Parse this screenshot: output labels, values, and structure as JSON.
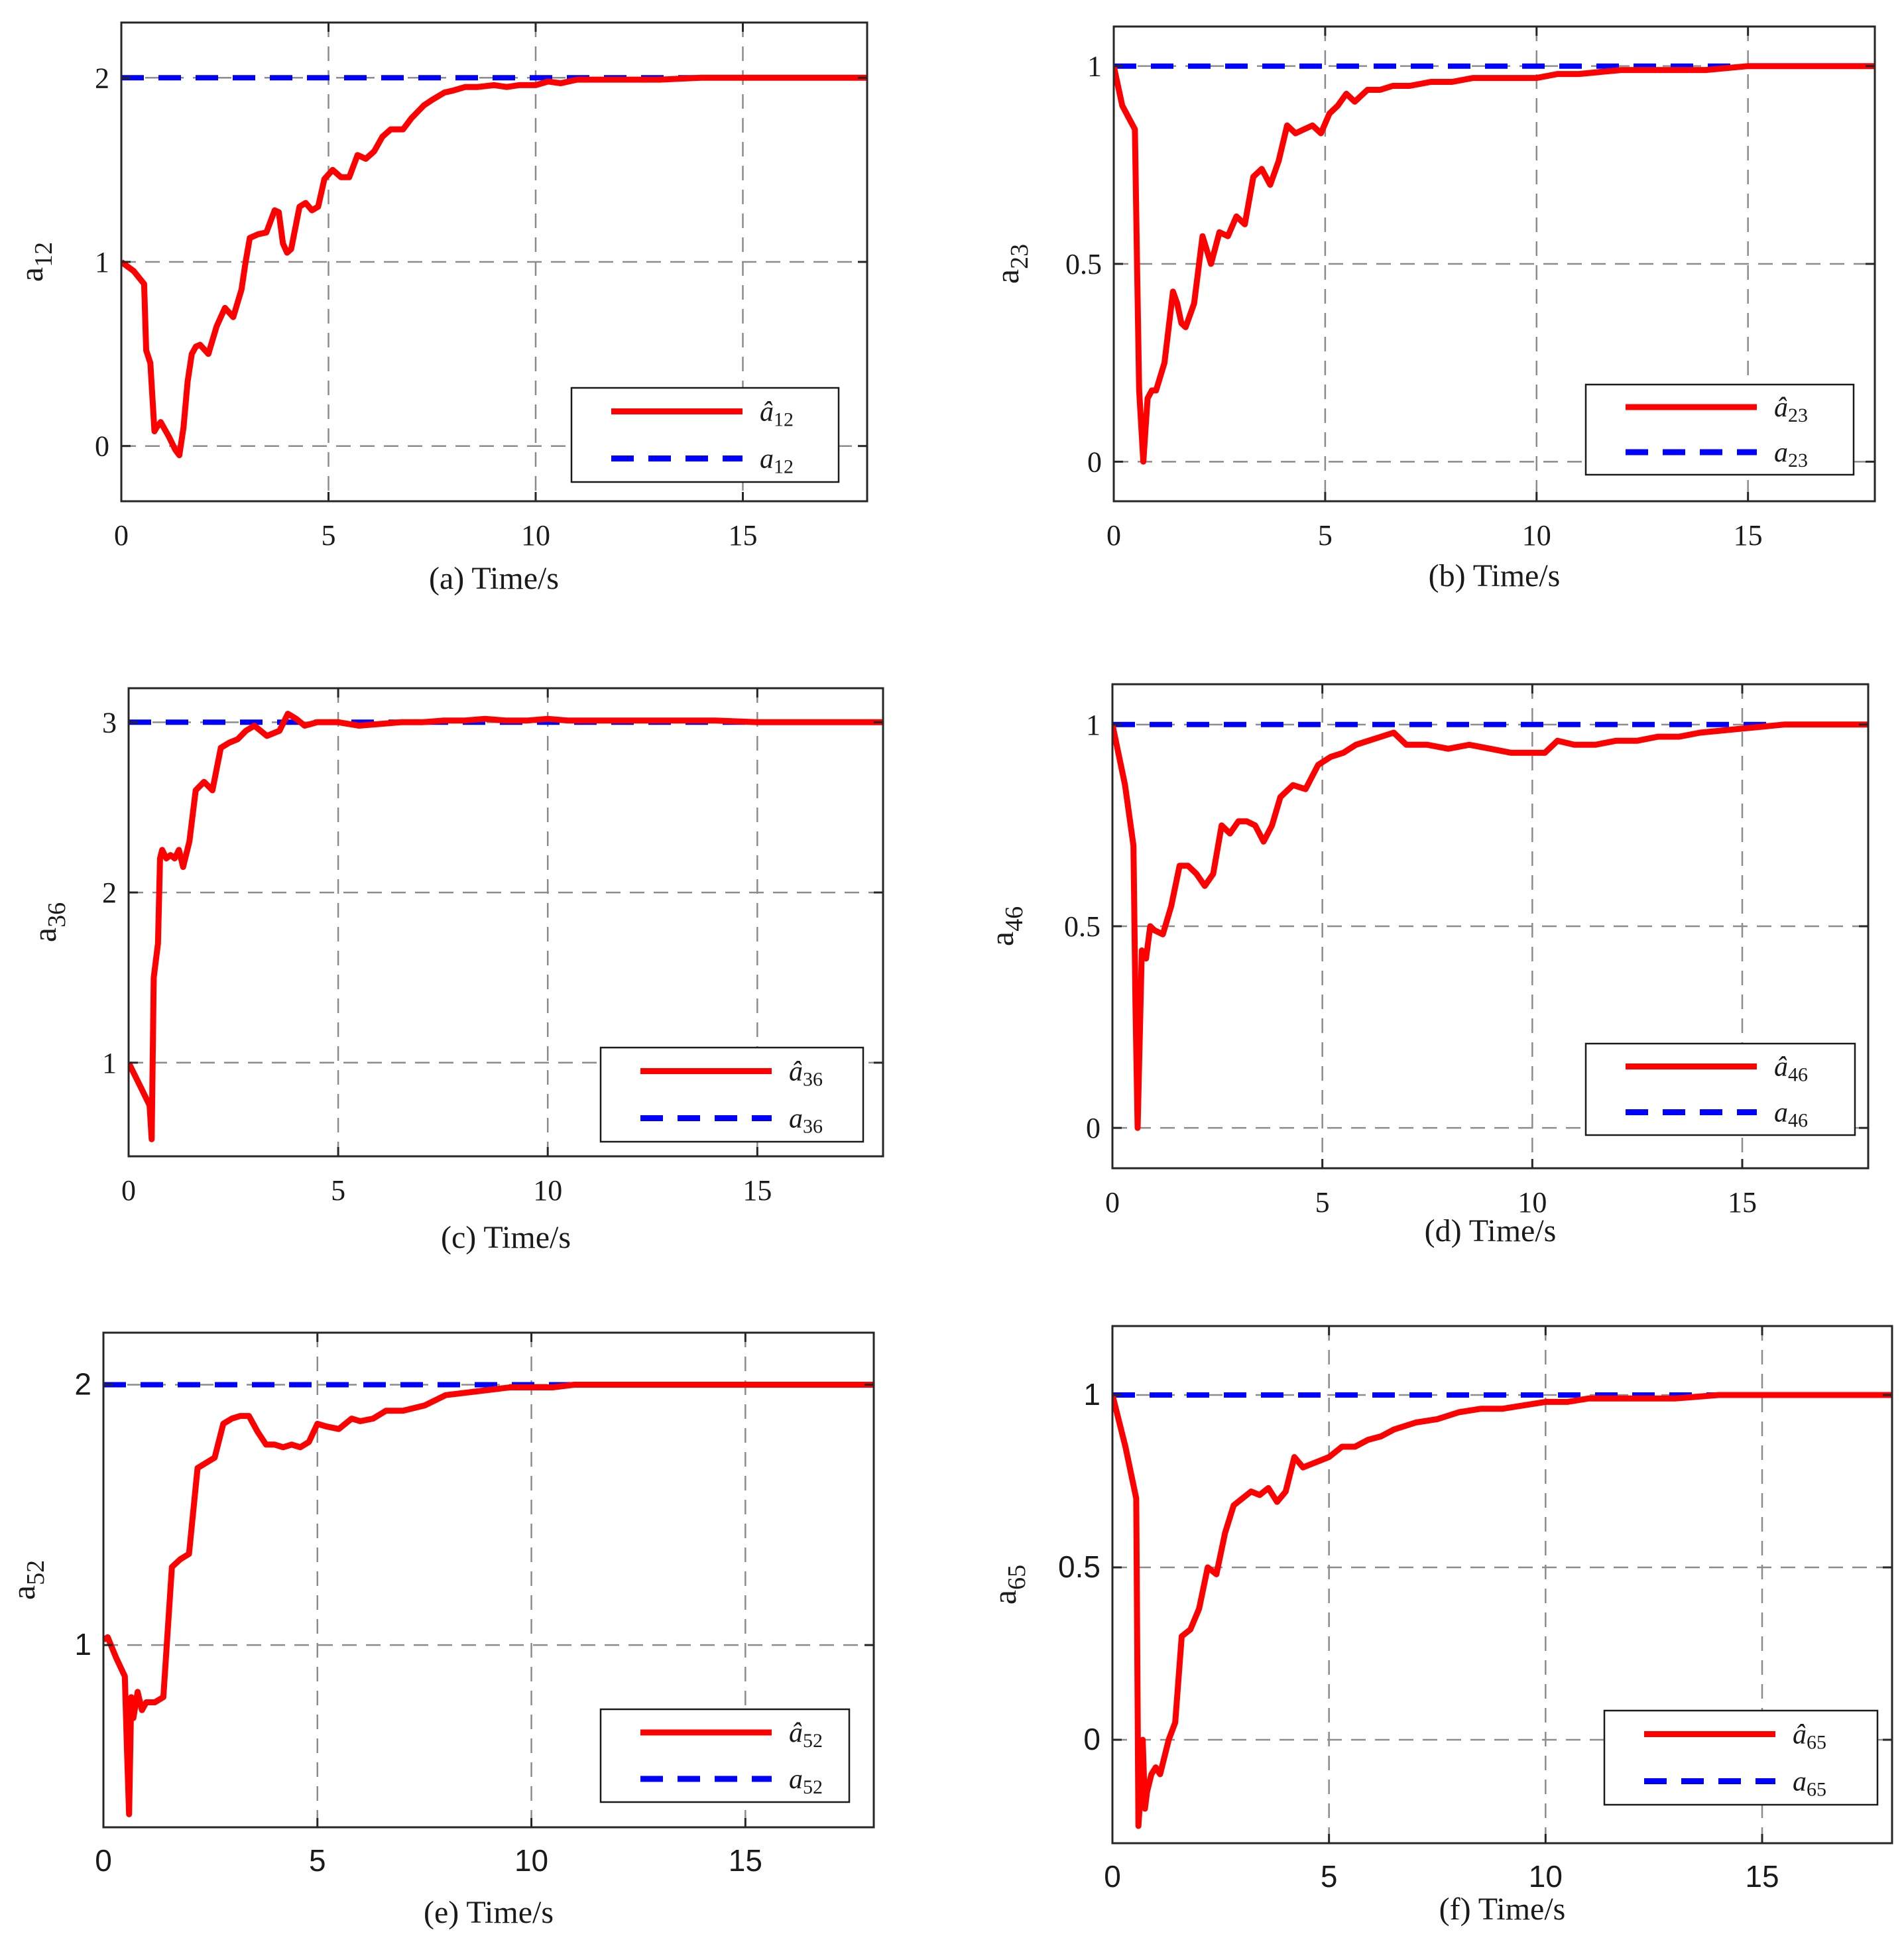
{
  "colors": {
    "estimate": "#ff0000",
    "true": "#0000ff",
    "grid": "#8c8c8c",
    "axis": "#262626"
  },
  "chart_data": [
    {
      "type": "line",
      "panel": "a",
      "caption": "(a) Time/s",
      "ylabel_base": "a",
      "ylabel_sub": "12",
      "xlim": [
        0,
        18
      ],
      "ylim": [
        -0.3,
        2.3
      ],
      "xticks": [
        0,
        5,
        10,
        15
      ],
      "yticks": [
        0,
        1,
        2
      ],
      "xtick_labels": [
        "0",
        "5",
        "10",
        "15"
      ],
      "ytick_labels": [
        "0",
        "1",
        "2"
      ],
      "legend": {
        "position": "bottom-right",
        "entries": [
          {
            "base": "â",
            "sub": "12"
          },
          {
            "base": "a",
            "sub": "12"
          }
        ]
      },
      "series": [
        {
          "name": "â12",
          "color": "#ff0000",
          "style": "solid",
          "x": [
            0,
            0.3,
            0.55,
            0.6,
            0.7,
            0.8,
            0.85,
            0.95,
            1.05,
            1.15,
            1.3,
            1.4,
            1.5,
            1.6,
            1.7,
            1.8,
            1.9,
            2.1,
            2.3,
            2.5,
            2.7,
            2.9,
            3.0,
            3.1,
            3.3,
            3.5,
            3.7,
            3.8,
            3.9,
            4.0,
            4.1,
            4.3,
            4.45,
            4.6,
            4.75,
            4.9,
            5.1,
            5.3,
            5.5,
            5.7,
            5.9,
            6.1,
            6.3,
            6.5,
            6.8,
            7.0,
            7.3,
            7.5,
            7.8,
            8.0,
            8.3,
            8.6,
            9.0,
            9.3,
            9.6,
            10.0,
            10.3,
            10.6,
            11.0,
            11.5,
            12.0,
            13.0,
            14.0,
            15.0,
            16.0,
            17.0,
            18.0
          ],
          "y": [
            1.0,
            0.95,
            0.88,
            0.52,
            0.45,
            0.08,
            0.1,
            0.13,
            0.09,
            0.05,
            -0.02,
            -0.05,
            0.1,
            0.35,
            0.5,
            0.54,
            0.55,
            0.5,
            0.65,
            0.75,
            0.7,
            0.85,
            1.0,
            1.13,
            1.15,
            1.16,
            1.28,
            1.27,
            1.1,
            1.05,
            1.07,
            1.3,
            1.32,
            1.28,
            1.3,
            1.45,
            1.5,
            1.46,
            1.46,
            1.58,
            1.56,
            1.6,
            1.68,
            1.72,
            1.72,
            1.78,
            1.85,
            1.88,
            1.92,
            1.93,
            1.95,
            1.95,
            1.96,
            1.95,
            1.96,
            1.96,
            1.98,
            1.97,
            1.99,
            1.99,
            1.99,
            1.99,
            2.0,
            2.0,
            2.0,
            2.0,
            2.0
          ]
        },
        {
          "name": "a12",
          "color": "#0000ff",
          "style": "dashed",
          "x": [
            0,
            18
          ],
          "y": [
            2,
            2
          ]
        }
      ]
    },
    {
      "type": "line",
      "panel": "b",
      "caption": "(b) Time/s",
      "ylabel_base": "a",
      "ylabel_sub": "23",
      "xlim": [
        0,
        18
      ],
      "ylim": [
        -0.1,
        1.1
      ],
      "xticks": [
        0,
        5,
        10,
        15
      ],
      "yticks": [
        0,
        0.5,
        1
      ],
      "xtick_labels": [
        "0",
        "5",
        "10",
        "15"
      ],
      "ytick_labels": [
        "0",
        "0.5",
        "1"
      ],
      "legend": {
        "position": "bottom-right",
        "entries": [
          {
            "base": "â",
            "sub": "23"
          },
          {
            "base": "a",
            "sub": "23"
          }
        ]
      },
      "series": [
        {
          "name": "â23",
          "color": "#ff0000",
          "style": "solid",
          "x": [
            0,
            0.2,
            0.5,
            0.55,
            0.6,
            0.7,
            0.8,
            0.9,
            1.0,
            1.2,
            1.4,
            1.5,
            1.6,
            1.7,
            1.9,
            2.1,
            2.3,
            2.5,
            2.7,
            2.9,
            3.1,
            3.3,
            3.5,
            3.7,
            3.9,
            4.1,
            4.3,
            4.5,
            4.7,
            4.9,
            5.1,
            5.3,
            5.5,
            5.7,
            6.0,
            6.3,
            6.6,
            7.0,
            7.5,
            8.0,
            8.5,
            9.0,
            9.5,
            10.0,
            10.5,
            11.0,
            12.0,
            13.0,
            14.0,
            15.0,
            16.0,
            17.0,
            18.0
          ],
          "y": [
            1.0,
            0.9,
            0.84,
            0.5,
            0.18,
            0.0,
            0.16,
            0.18,
            0.18,
            0.25,
            0.43,
            0.4,
            0.35,
            0.34,
            0.4,
            0.57,
            0.5,
            0.58,
            0.57,
            0.62,
            0.6,
            0.72,
            0.74,
            0.7,
            0.76,
            0.85,
            0.83,
            0.84,
            0.85,
            0.83,
            0.88,
            0.9,
            0.93,
            0.91,
            0.94,
            0.94,
            0.95,
            0.95,
            0.96,
            0.96,
            0.97,
            0.97,
            0.97,
            0.97,
            0.98,
            0.98,
            0.99,
            0.99,
            0.99,
            1.0,
            1.0,
            1.0,
            1.0
          ]
        },
        {
          "name": "a23",
          "color": "#0000ff",
          "style": "dashed",
          "x": [
            0,
            18
          ],
          "y": [
            1,
            1
          ]
        }
      ]
    },
    {
      "type": "line",
      "panel": "c",
      "caption": "(c) Time/s",
      "ylabel_base": "a",
      "ylabel_sub": "36",
      "xlim": [
        0,
        18
      ],
      "ylim": [
        0.45,
        3.2
      ],
      "xticks": [
        0,
        5,
        10,
        15
      ],
      "yticks": [
        1,
        2,
        3
      ],
      "xtick_labels": [
        "0",
        "5",
        "10",
        "15"
      ],
      "ytick_labels": [
        "1",
        "2",
        "3"
      ],
      "legend": {
        "position": "bottom-right",
        "entries": [
          {
            "base": "â",
            "sub": "36"
          },
          {
            "base": "a",
            "sub": "36"
          }
        ]
      },
      "series": [
        {
          "name": "â36",
          "color": "#ff0000",
          "style": "solid",
          "x": [
            0,
            0.3,
            0.5,
            0.55,
            0.6,
            0.7,
            0.75,
            0.8,
            0.9,
            1.0,
            1.1,
            1.2,
            1.3,
            1.45,
            1.6,
            1.8,
            2.0,
            2.2,
            2.4,
            2.6,
            2.8,
            3.0,
            3.3,
            3.6,
            3.8,
            4.0,
            4.2,
            4.5,
            5.0,
            5.5,
            6.0,
            6.5,
            7.0,
            7.5,
            8.0,
            8.5,
            9.0,
            9.5,
            10.0,
            10.5,
            11.0,
            12.0,
            13.0,
            14.0,
            15.0,
            16.0,
            17.0,
            18.0
          ],
          "y": [
            1.0,
            0.85,
            0.75,
            0.55,
            1.5,
            1.7,
            2.2,
            2.25,
            2.2,
            2.22,
            2.2,
            2.25,
            2.15,
            2.3,
            2.6,
            2.65,
            2.6,
            2.85,
            2.88,
            2.9,
            2.95,
            2.98,
            2.92,
            2.95,
            3.05,
            3.02,
            2.98,
            3.0,
            3.0,
            2.98,
            2.99,
            3.0,
            3.0,
            3.01,
            3.01,
            3.02,
            3.01,
            3.01,
            3.02,
            3.01,
            3.01,
            3.01,
            3.01,
            3.01,
            3.0,
            3.0,
            3.0,
            3.0
          ]
        },
        {
          "name": "a36",
          "color": "#0000ff",
          "style": "dashed",
          "x": [
            0,
            18
          ],
          "y": [
            3,
            3
          ]
        }
      ]
    },
    {
      "type": "line",
      "panel": "d",
      "caption": "(d) Time/s",
      "ylabel_base": "a",
      "ylabel_sub": "46",
      "xlim": [
        0,
        18
      ],
      "ylim": [
        -0.1,
        1.1
      ],
      "xticks": [
        0,
        5,
        10,
        15
      ],
      "yticks": [
        0,
        0.5,
        1
      ],
      "xtick_labels": [
        "0",
        "5",
        "10",
        "15"
      ],
      "ytick_labels": [
        "0",
        "0.5",
        "1"
      ],
      "legend": {
        "position": "bottom-right",
        "entries": [
          {
            "base": "â",
            "sub": "46"
          },
          {
            "base": "a",
            "sub": "46"
          }
        ]
      },
      "series": [
        {
          "name": "â46",
          "color": "#ff0000",
          "style": "solid",
          "x": [
            0,
            0.3,
            0.5,
            0.55,
            0.6,
            0.7,
            0.8,
            0.9,
            1.0,
            1.2,
            1.4,
            1.6,
            1.8,
            2.0,
            2.2,
            2.4,
            2.6,
            2.8,
            3.0,
            3.2,
            3.4,
            3.6,
            3.8,
            4.0,
            4.3,
            4.6,
            4.9,
            5.2,
            5.5,
            5.8,
            6.1,
            6.4,
            6.7,
            7.0,
            7.5,
            8.0,
            8.5,
            9.0,
            9.5,
            10.0,
            10.3,
            10.6,
            11.0,
            11.5,
            12.0,
            12.5,
            13.0,
            13.5,
            14.0,
            15.0,
            16.0,
            17.0,
            18.0
          ],
          "y": [
            1.0,
            0.85,
            0.7,
            0.3,
            0.0,
            0.44,
            0.42,
            0.5,
            0.49,
            0.48,
            0.55,
            0.65,
            0.65,
            0.63,
            0.6,
            0.63,
            0.75,
            0.73,
            0.76,
            0.76,
            0.75,
            0.71,
            0.75,
            0.82,
            0.85,
            0.84,
            0.9,
            0.92,
            0.93,
            0.95,
            0.96,
            0.97,
            0.98,
            0.95,
            0.95,
            0.94,
            0.95,
            0.94,
            0.93,
            0.93,
            0.93,
            0.96,
            0.95,
            0.95,
            0.96,
            0.96,
            0.97,
            0.97,
            0.98,
            0.99,
            1.0,
            1.0,
            1.0
          ]
        },
        {
          "name": "a46",
          "color": "#0000ff",
          "style": "dashed",
          "x": [
            0,
            18
          ],
          "y": [
            1,
            1
          ]
        }
      ]
    },
    {
      "type": "line",
      "panel": "e",
      "caption": "(e) Time/s",
      "ylabel_base": "a",
      "ylabel_sub": "52",
      "sans_ticks": true,
      "xlim": [
        0,
        18
      ],
      "ylim": [
        0.3,
        2.2
      ],
      "xticks": [
        0,
        5,
        10,
        15
      ],
      "yticks": [
        1,
        2
      ],
      "xtick_labels": [
        "0",
        "5",
        "10",
        "15"
      ],
      "ytick_labels": [
        "1",
        "2"
      ],
      "legend": {
        "position": "bottom-right",
        "entries": [
          {
            "base": "â",
            "sub": "52"
          },
          {
            "base": "a",
            "sub": "52"
          }
        ]
      },
      "series": [
        {
          "name": "â52",
          "color": "#ff0000",
          "style": "solid",
          "x": [
            0,
            0.1,
            0.3,
            0.5,
            0.55,
            0.6,
            0.65,
            0.7,
            0.8,
            0.9,
            1.0,
            1.2,
            1.4,
            1.6,
            1.8,
            2.0,
            2.2,
            2.4,
            2.6,
            2.8,
            3.0,
            3.2,
            3.4,
            3.6,
            3.8,
            4.0,
            4.2,
            4.4,
            4.6,
            4.8,
            5.0,
            5.2,
            5.5,
            5.8,
            6.0,
            6.3,
            6.6,
            7.0,
            7.5,
            8.0,
            8.5,
            9.0,
            9.5,
            10.0,
            10.5,
            11.0,
            12.0,
            13.0,
            14.0,
            15.0,
            16.0,
            17.0,
            18.0
          ],
          "y": [
            1.02,
            1.03,
            0.95,
            0.88,
            0.6,
            0.35,
            0.8,
            0.72,
            0.82,
            0.75,
            0.78,
            0.78,
            0.8,
            1.3,
            1.33,
            1.35,
            1.68,
            1.7,
            1.72,
            1.85,
            1.87,
            1.88,
            1.88,
            1.82,
            1.77,
            1.77,
            1.76,
            1.77,
            1.76,
            1.78,
            1.85,
            1.84,
            1.83,
            1.87,
            1.86,
            1.87,
            1.9,
            1.9,
            1.92,
            1.96,
            1.97,
            1.98,
            1.99,
            1.99,
            1.99,
            2.0,
            2.0,
            2.0,
            2.0,
            2.0,
            2.0,
            2.0,
            2.0
          ]
        },
        {
          "name": "a52",
          "color": "#0000ff",
          "style": "dashed",
          "x": [
            0,
            18
          ],
          "y": [
            2,
            2
          ]
        }
      ]
    },
    {
      "type": "line",
      "panel": "f",
      "caption": "(f) Time/s",
      "ylabel_base": "a",
      "ylabel_sub": "65",
      "sans_ticks": true,
      "xlim": [
        0,
        18
      ],
      "ylim": [
        -0.3,
        1.2
      ],
      "xticks": [
        0,
        5,
        10,
        15
      ],
      "yticks": [
        0,
        0.5,
        1
      ],
      "xtick_labels": [
        "0",
        "5",
        "10",
        "15"
      ],
      "ytick_labels": [
        "0",
        "0.5",
        "1"
      ],
      "legend": {
        "position": "bottom-right",
        "entries": [
          {
            "base": "â",
            "sub": "65"
          },
          {
            "base": "a",
            "sub": "65"
          }
        ]
      },
      "series": [
        {
          "name": "â65",
          "color": "#ff0000",
          "style": "solid",
          "x": [
            0,
            0.3,
            0.55,
            0.6,
            0.65,
            0.7,
            0.75,
            0.8,
            0.9,
            1.0,
            1.1,
            1.2,
            1.3,
            1.45,
            1.6,
            1.8,
            2.0,
            2.2,
            2.4,
            2.6,
            2.8,
            3.0,
            3.2,
            3.4,
            3.6,
            3.8,
            4.0,
            4.2,
            4.4,
            4.6,
            4.8,
            5.0,
            5.3,
            5.6,
            5.9,
            6.2,
            6.5,
            7.0,
            7.5,
            8.0,
            8.5,
            9.0,
            9.5,
            10.0,
            10.5,
            11.0,
            12.0,
            13.0,
            14.0,
            15.0,
            16.0,
            17.0,
            18.0
          ],
          "y": [
            1.0,
            0.85,
            0.7,
            -0.25,
            -0.15,
            0.0,
            -0.2,
            -0.15,
            -0.1,
            -0.08,
            -0.1,
            -0.05,
            0.0,
            0.05,
            0.3,
            0.32,
            0.38,
            0.5,
            0.48,
            0.6,
            0.68,
            0.7,
            0.72,
            0.71,
            0.73,
            0.69,
            0.72,
            0.82,
            0.79,
            0.8,
            0.81,
            0.82,
            0.85,
            0.85,
            0.87,
            0.88,
            0.9,
            0.92,
            0.93,
            0.95,
            0.96,
            0.96,
            0.97,
            0.98,
            0.98,
            0.99,
            0.99,
            0.99,
            1.0,
            1.0,
            1.0,
            1.0,
            1.0
          ]
        },
        {
          "name": "a65",
          "color": "#0000ff",
          "style": "dashed",
          "x": [
            0,
            18
          ],
          "y": [
            1,
            1
          ]
        }
      ]
    }
  ]
}
